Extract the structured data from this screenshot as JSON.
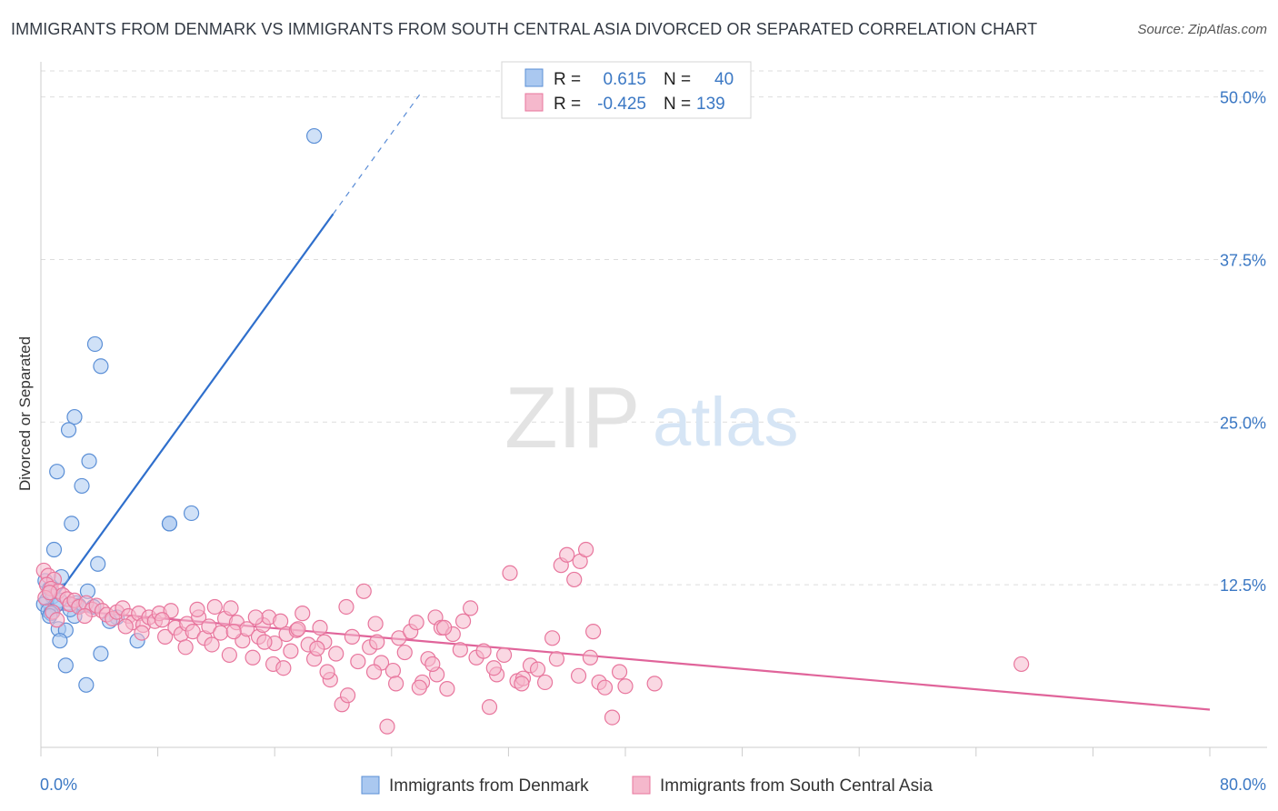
{
  "header": {
    "title": "IMMIGRANTS FROM DENMARK VS IMMIGRANTS FROM SOUTH CENTRAL ASIA DIVORCED OR SEPARATED CORRELATION CHART",
    "source": "Source: ZipAtlas.com"
  },
  "watermark": {
    "zip": "ZIP",
    "atlas": "atlas"
  },
  "colors": {
    "blue_fill": "#aac8f0",
    "blue_stroke": "#5b8fd6",
    "blue_line": "#2f6fcc",
    "pink_fill": "#f5b8cc",
    "pink_stroke": "#e8769d",
    "pink_line": "#e0649a",
    "axis_label": "#3b78c4",
    "grid": "#dddddd"
  },
  "chart_data": {
    "type": "scatter",
    "title": "IMMIGRANTS FROM DENMARK VS IMMIGRANTS FROM SOUTH CENTRAL ASIA DIVORCED OR SEPARATED CORRELATION CHART",
    "xlabel": "",
    "ylabel": "Divorced or Separated",
    "xlim": [
      0,
      80
    ],
    "ylim": [
      0,
      52
    ],
    "x_tick_labels": [
      "0.0%",
      "80.0%"
    ],
    "y_ticks": [
      12.5,
      25.0,
      37.5,
      50.0
    ],
    "y_tick_labels": [
      "12.5%",
      "25.0%",
      "37.5%",
      "50.0%"
    ],
    "grid": true,
    "legend_position": "top-center",
    "stats": [
      {
        "r_label": "R =",
        "r_value": "0.615",
        "n_label": "N =",
        "n_value": "40"
      },
      {
        "r_label": "R =",
        "r_value": "-0.425",
        "n_label": "N =",
        "n_value": "139"
      }
    ],
    "series": [
      {
        "name": "Immigrants from Denmark",
        "color": "blue",
        "trend": {
          "x0": 0.2,
          "y0": 10.3,
          "x1": 20.0,
          "y1": 41.0,
          "dash_to_x": 26.0,
          "dash_to_y": 50.3
        },
        "points": [
          [
            18.7,
            47.0
          ],
          [
            3.7,
            31.0
          ],
          [
            4.1,
            29.3
          ],
          [
            2.3,
            25.4
          ],
          [
            1.9,
            24.4
          ],
          [
            3.3,
            22.0
          ],
          [
            1.1,
            21.2
          ],
          [
            2.8,
            20.1
          ],
          [
            8.8,
            17.2
          ],
          [
            8.8,
            17.2
          ],
          [
            10.3,
            18.0
          ],
          [
            2.1,
            17.2
          ],
          [
            0.9,
            15.2
          ],
          [
            3.9,
            14.1
          ],
          [
            1.4,
            13.1
          ],
          [
            0.3,
            12.8
          ],
          [
            0.6,
            12.2
          ],
          [
            3.2,
            12.0
          ],
          [
            0.4,
            11.3
          ],
          [
            0.8,
            11.6
          ],
          [
            1.3,
            11.3
          ],
          [
            2.4,
            11.1
          ],
          [
            0.2,
            11.0
          ],
          [
            1.0,
            10.9
          ],
          [
            2.6,
            10.9
          ],
          [
            3.6,
            10.8
          ],
          [
            0.5,
            10.5
          ],
          [
            0.7,
            10.3
          ],
          [
            2.3,
            10.1
          ],
          [
            5.2,
            10.0
          ],
          [
            0.6,
            10.1
          ],
          [
            4.7,
            9.7
          ],
          [
            1.2,
            9.1
          ],
          [
            1.7,
            9.0
          ],
          [
            1.3,
            8.2
          ],
          [
            6.6,
            8.2
          ],
          [
            4.1,
            7.2
          ],
          [
            1.7,
            6.3
          ],
          [
            3.1,
            4.8
          ],
          [
            2.0,
            10.6
          ]
        ]
      },
      {
        "name": "Immigrants from South Central Asia",
        "color": "pink",
        "trend": {
          "x0": 0.2,
          "y0": 10.7,
          "x1": 80.0,
          "y1": 2.9
        },
        "points": [
          [
            0.2,
            13.6
          ],
          [
            0.5,
            13.2
          ],
          [
            0.9,
            12.9
          ],
          [
            0.4,
            12.5
          ],
          [
            0.7,
            12.2
          ],
          [
            1.2,
            12.0
          ],
          [
            1.5,
            11.7
          ],
          [
            0.3,
            11.5
          ],
          [
            1.8,
            11.4
          ],
          [
            2.0,
            11.0
          ],
          [
            2.3,
            11.3
          ],
          [
            2.6,
            10.8
          ],
          [
            3.1,
            11.1
          ],
          [
            3.5,
            10.6
          ],
          [
            3.8,
            10.9
          ],
          [
            4.2,
            10.5
          ],
          [
            4.5,
            10.2
          ],
          [
            4.9,
            9.9
          ],
          [
            5.2,
            10.4
          ],
          [
            5.6,
            10.7
          ],
          [
            6.0,
            10.1
          ],
          [
            6.3,
            9.6
          ],
          [
            6.7,
            10.3
          ],
          [
            7.0,
            9.4
          ],
          [
            7.4,
            10.0
          ],
          [
            7.8,
            9.7
          ],
          [
            8.1,
            10.3
          ],
          [
            8.5,
            8.5
          ],
          [
            8.9,
            10.5
          ],
          [
            9.2,
            9.2
          ],
          [
            9.6,
            8.7
          ],
          [
            10.0,
            9.5
          ],
          [
            10.4,
            8.9
          ],
          [
            10.8,
            10.0
          ],
          [
            11.2,
            8.4
          ],
          [
            11.5,
            9.3
          ],
          [
            11.9,
            10.8
          ],
          [
            12.3,
            8.8
          ],
          [
            12.6,
            9.9
          ],
          [
            13.0,
            10.7
          ],
          [
            13.4,
            9.6
          ],
          [
            13.8,
            8.2
          ],
          [
            14.1,
            9.1
          ],
          [
            14.5,
            6.9
          ],
          [
            14.9,
            8.5
          ],
          [
            15.2,
            9.4
          ],
          [
            15.6,
            10.0
          ],
          [
            16.0,
            8.0
          ],
          [
            16.4,
            9.7
          ],
          [
            16.8,
            8.7
          ],
          [
            17.1,
            7.4
          ],
          [
            17.5,
            9.0
          ],
          [
            17.9,
            10.3
          ],
          [
            18.3,
            7.9
          ],
          [
            18.7,
            6.8
          ],
          [
            19.1,
            9.2
          ],
          [
            19.4,
            8.1
          ],
          [
            19.8,
            5.2
          ],
          [
            20.2,
            7.2
          ],
          [
            20.6,
            3.3
          ],
          [
            20.9,
            10.8
          ],
          [
            21.3,
            8.5
          ],
          [
            21.7,
            6.6
          ],
          [
            22.1,
            12.0
          ],
          [
            22.5,
            7.7
          ],
          [
            22.9,
            9.5
          ],
          [
            23.3,
            6.5
          ],
          [
            23.7,
            1.6
          ],
          [
            24.1,
            5.9
          ],
          [
            24.5,
            8.4
          ],
          [
            24.9,
            7.3
          ],
          [
            25.3,
            8.9
          ],
          [
            25.7,
            9.6
          ],
          [
            26.1,
            5.0
          ],
          [
            26.5,
            6.8
          ],
          [
            27.0,
            10.0
          ],
          [
            27.4,
            9.2
          ],
          [
            27.8,
            4.5
          ],
          [
            28.2,
            8.7
          ],
          [
            28.7,
            7.5
          ],
          [
            0.8,
            10.4
          ],
          [
            1.1,
            9.8
          ],
          [
            3.0,
            10.1
          ],
          [
            5.8,
            9.3
          ],
          [
            6.9,
            8.8
          ],
          [
            9.9,
            7.7
          ],
          [
            12.9,
            7.1
          ],
          [
            15.9,
            6.4
          ],
          [
            18.9,
            7.6
          ],
          [
            21.0,
            4.0
          ],
          [
            23.0,
            8.1
          ],
          [
            25.9,
            4.6
          ],
          [
            27.1,
            5.6
          ],
          [
            28.9,
            9.7
          ],
          [
            29.4,
            10.7
          ],
          [
            29.8,
            6.9
          ],
          [
            30.3,
            7.4
          ],
          [
            30.7,
            3.1
          ],
          [
            31.2,
            5.6
          ],
          [
            31.7,
            7.1
          ],
          [
            32.1,
            13.4
          ],
          [
            32.6,
            5.1
          ],
          [
            33.0,
            5.3
          ],
          [
            33.5,
            6.3
          ],
          [
            34.0,
            6.0
          ],
          [
            34.5,
            5.0
          ],
          [
            35.0,
            8.4
          ],
          [
            35.6,
            14.0
          ],
          [
            36.0,
            14.8
          ],
          [
            36.5,
            12.9
          ],
          [
            36.9,
            14.3
          ],
          [
            37.3,
            15.2
          ],
          [
            37.8,
            8.9
          ],
          [
            38.2,
            5.0
          ],
          [
            38.6,
            4.6
          ],
          [
            39.1,
            2.3
          ],
          [
            39.6,
            5.8
          ],
          [
            40.0,
            4.7
          ],
          [
            24.3,
            4.9
          ],
          [
            26.8,
            6.4
          ],
          [
            13.2,
            8.9
          ],
          [
            15.3,
            8.1
          ],
          [
            17.6,
            9.1
          ],
          [
            19.6,
            5.8
          ],
          [
            8.3,
            9.8
          ],
          [
            10.7,
            10.6
          ],
          [
            11.7,
            7.9
          ],
          [
            14.7,
            10.0
          ],
          [
            16.6,
            6.1
          ],
          [
            22.8,
            5.8
          ],
          [
            27.6,
            9.2
          ],
          [
            31.0,
            6.1
          ],
          [
            32.9,
            4.9
          ],
          [
            35.3,
            6.8
          ],
          [
            36.8,
            5.5
          ],
          [
            37.6,
            6.9
          ],
          [
            42.0,
            4.9
          ],
          [
            67.1,
            6.4
          ],
          [
            0.6,
            11.9
          ]
        ]
      }
    ]
  },
  "legend": {
    "items": [
      {
        "label": "Immigrants from Denmark",
        "color": "blue"
      },
      {
        "label": "Immigrants from South Central Asia",
        "color": "pink"
      }
    ]
  }
}
